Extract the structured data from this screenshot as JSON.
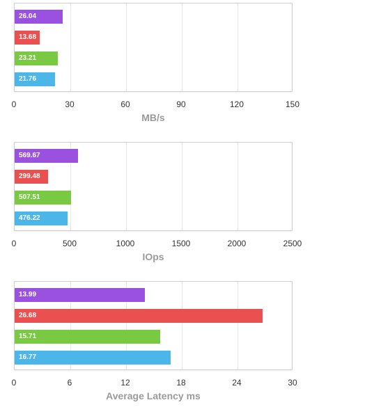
{
  "chart_data": [
    {
      "type": "bar",
      "orientation": "horizontal",
      "xlabel": "MB/s",
      "xlim": [
        0,
        150
      ],
      "ticks": [
        "0",
        "30",
        "60",
        "90",
        "120",
        "150"
      ],
      "tick_values": [
        0,
        30,
        60,
        90,
        120,
        150
      ],
      "bars": [
        {
          "value": 26.04,
          "label": "26.04",
          "color": "#9b51e0"
        },
        {
          "value": 13.68,
          "label": "13.68",
          "color": "#eb5050"
        },
        {
          "value": 23.21,
          "label": "23.21",
          "color": "#7ac943"
        },
        {
          "value": 21.76,
          "label": "21.76",
          "color": "#4db6e8"
        }
      ]
    },
    {
      "type": "bar",
      "orientation": "horizontal",
      "xlabel": "IOps",
      "xlim": [
        0,
        2500
      ],
      "ticks": [
        "0",
        "500",
        "1000",
        "1500",
        "2000",
        "2500"
      ],
      "tick_values": [
        0,
        500,
        1000,
        1500,
        2000,
        2500
      ],
      "bars": [
        {
          "value": 569.67,
          "label": "569.67",
          "color": "#9b51e0"
        },
        {
          "value": 299.48,
          "label": "299.48",
          "color": "#eb5050"
        },
        {
          "value": 507.51,
          "label": "507.51",
          "color": "#7ac943"
        },
        {
          "value": 476.22,
          "label": "476.22",
          "color": "#4db6e8"
        }
      ]
    },
    {
      "type": "bar",
      "orientation": "horizontal",
      "xlabel": "Average Latency ms",
      "xlim": [
        0,
        30
      ],
      "ticks": [
        "0",
        "6",
        "12",
        "18",
        "24",
        "30"
      ],
      "tick_values": [
        0,
        6,
        12,
        18,
        24,
        30
      ],
      "bars": [
        {
          "value": 13.99,
          "label": "13.99",
          "color": "#9b51e0"
        },
        {
          "value": 26.68,
          "label": "26.68",
          "color": "#eb5050"
        },
        {
          "value": 15.71,
          "label": "15.71",
          "color": "#7ac943"
        },
        {
          "value": 16.77,
          "label": "16.77",
          "color": "#4db6e8"
        }
      ]
    }
  ]
}
